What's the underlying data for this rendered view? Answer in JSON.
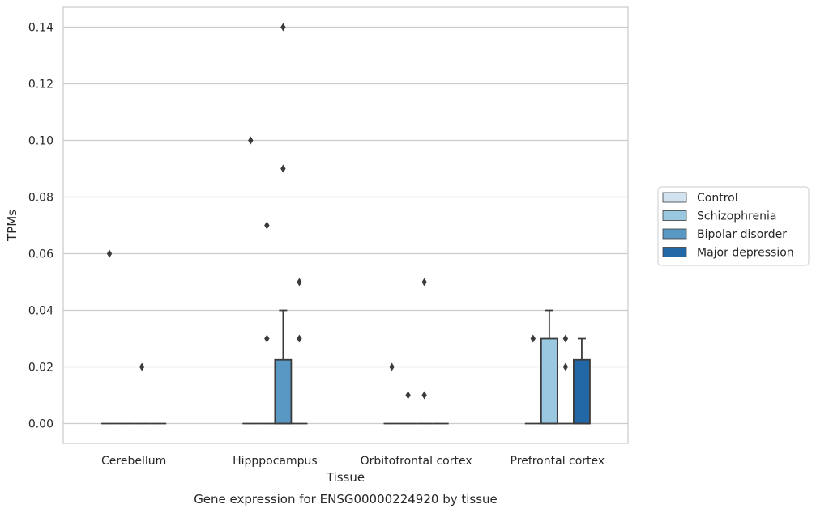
{
  "chart_data": {
    "type": "box",
    "xlabel": "Tissue",
    "ylabel": "TPMs",
    "caption": "Gene expression for ENSG00000224920 by tissue",
    "ylim": [
      -0.007,
      0.147
    ],
    "yticks": [
      0.0,
      0.02,
      0.04,
      0.06,
      0.08,
      0.1,
      0.12,
      0.14
    ],
    "ytick_labels": [
      "0.00",
      "0.02",
      "0.04",
      "0.06",
      "0.08",
      "0.10",
      "0.12",
      "0.14"
    ],
    "grid": "horizontal",
    "legend_position": "right",
    "categories": [
      "Cerebellum",
      "Hipppocampus",
      "Orbitofrontal cortex",
      "Prefrontal cortex"
    ],
    "series": [
      {
        "name": "Control",
        "color": "#d1e2f1",
        "boxes": [
          {
            "q1": 0,
            "median": 0,
            "q3": 0,
            "whisker_low": 0,
            "whisker_high": 0,
            "outliers": [
              0.06
            ]
          },
          {
            "q1": 0,
            "median": 0,
            "q3": 0,
            "whisker_low": 0,
            "whisker_high": 0,
            "outliers": [
              0.1
            ]
          },
          {
            "q1": 0,
            "median": 0,
            "q3": 0,
            "whisker_low": 0,
            "whisker_high": 0,
            "outliers": [
              0.02
            ]
          },
          {
            "q1": 0,
            "median": 0,
            "q3": 0,
            "whisker_low": 0,
            "whisker_high": 0,
            "outliers": [
              0.03
            ]
          }
        ]
      },
      {
        "name": "Schizophrenia",
        "color": "#9ac8e0",
        "boxes": [
          {
            "q1": 0,
            "median": 0,
            "q3": 0,
            "whisker_low": 0,
            "whisker_high": 0,
            "outliers": []
          },
          {
            "q1": 0,
            "median": 0,
            "q3": 0,
            "whisker_low": 0,
            "whisker_high": 0,
            "outliers": [
              0.07,
              0.03
            ]
          },
          {
            "q1": 0,
            "median": 0,
            "q3": 0,
            "whisker_low": 0,
            "whisker_high": 0,
            "outliers": [
              0.01
            ]
          },
          {
            "q1": 0,
            "median": 0,
            "q3": 0.03,
            "whisker_low": 0,
            "whisker_high": 0.04,
            "outliers": []
          }
        ]
      },
      {
        "name": "Bipolar disorder",
        "color": "#5a98c4",
        "boxes": [
          {
            "q1": 0,
            "median": 0,
            "q3": 0,
            "whisker_low": 0,
            "whisker_high": 0,
            "outliers": [
              0.02
            ]
          },
          {
            "q1": 0,
            "median": 0,
            "q3": 0.0225,
            "whisker_low": 0,
            "whisker_high": 0.04,
            "outliers": [
              0.14,
              0.09
            ]
          },
          {
            "q1": 0,
            "median": 0,
            "q3": 0,
            "whisker_low": 0,
            "whisker_high": 0,
            "outliers": [
              0.05,
              0.01
            ]
          },
          {
            "q1": 0,
            "median": 0,
            "q3": 0,
            "whisker_low": 0,
            "whisker_high": 0,
            "outliers": [
              0.03,
              0.02
            ]
          }
        ]
      },
      {
        "name": "Major depression",
        "color": "#2268a7",
        "boxes": [
          {
            "q1": 0,
            "median": 0,
            "q3": 0,
            "whisker_low": 0,
            "whisker_high": 0,
            "outliers": []
          },
          {
            "q1": 0,
            "median": 0,
            "q3": 0,
            "whisker_low": 0,
            "whisker_high": 0,
            "outliers": [
              0.05,
              0.03
            ]
          },
          {
            "q1": 0,
            "median": 0,
            "q3": 0,
            "whisker_low": 0,
            "whisker_high": 0,
            "outliers": []
          },
          {
            "q1": 0,
            "median": 0,
            "q3": 0.0225,
            "whisker_low": 0,
            "whisker_high": 0.03,
            "outliers": []
          }
        ]
      }
    ]
  }
}
